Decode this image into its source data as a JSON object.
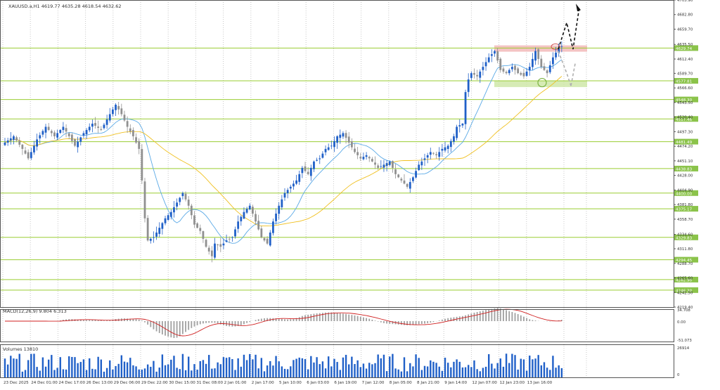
{
  "symbol_header": "XAUUSD.a,H1  4619.77 4635.28 4618.54 4632.62",
  "macd_label": "MACD(12,26,9) 9.804 6.313",
  "volume_label": "Volumes 13810",
  "colors": {
    "bull": "#2060c8",
    "bear": "#909090",
    "ma_fast": "#5aa9e6",
    "ma_slow": "#f0c020",
    "level_line": "#9acd32",
    "level_label_bg": "#8bc34a",
    "resistance_zone": "#f2b8b8",
    "support_zone": "#cfe8a8",
    "macd_signal": "#d02020",
    "arrow_up": "#111111",
    "arrow_down": "#b0b0b0"
  },
  "chart_data": [
    {
      "type": "candlestick",
      "symbol": "XAUUSD.a",
      "timeframe": "H1",
      "ylim": [
        4219.4,
        4705.9
      ],
      "y_ticks": [
        "4705.90",
        "4682.80",
        "4659.70",
        "4635.50",
        "4612.40",
        "4589.70",
        "4566.60",
        "4543.50",
        "4520.40",
        "4497.30",
        "4474.20",
        "4451.10",
        "4428.00",
        "4404.90",
        "4381.80",
        "4358.70",
        "4334.60",
        "4311.80",
        "4288.70",
        "4265.60",
        "4242.50",
        "4219.40"
      ],
      "x_labels": [
        "23 Dec 2025",
        "24 Dec 01:00",
        "24 Dec 17:00",
        "26 Dec 13:00",
        "29 Dec 06:00",
        "29 Dec 22:00",
        "30 Dec 15:00",
        "31 Dec 08:00",
        "2 Jan 01:00",
        "2 Jan 17:00",
        "5 Jan 10:00",
        "6 Jan 03:00",
        "6 Jan 19:00",
        "7 Jan 12:00",
        "8 Jan 05:00",
        "8 Jan 21:00",
        "9 Jan 14:00",
        "12 Jan 07:00",
        "12 Jan 23:00",
        "13 Jan 16:00"
      ],
      "levels": [
        {
          "label": "4629.74",
          "value": 4629.74
        },
        {
          "label": "4577.81",
          "value": 4577.81
        },
        {
          "label": "4548.30",
          "value": 4548.3
        },
        {
          "label": "4517.46",
          "value": 4517.46
        },
        {
          "label": "4481.49",
          "value": 4481.49
        },
        {
          "label": "4438.83",
          "value": 4438.83
        },
        {
          "label": "4400.00",
          "value": 4400.0
        },
        {
          "label": "4375.17",
          "value": 4375.17
        },
        {
          "label": "4329.83",
          "value": 4329.83
        },
        {
          "label": "4294.45",
          "value": 4294.45
        },
        {
          "label": "4262.90",
          "value": 4262.9
        },
        {
          "label": "4246.30",
          "value": 4246.3
        }
      ],
      "resistance_zone": [
        4624,
        4634
      ],
      "support_zone": [
        4568,
        4578
      ],
      "close_trend": [
        [
          0,
          4480
        ],
        [
          3,
          4490
        ],
        [
          6,
          4470
        ],
        [
          8,
          4455
        ],
        [
          11,
          4485
        ],
        [
          14,
          4505
        ],
        [
          17,
          4490
        ],
        [
          20,
          4505
        ],
        [
          24,
          4475
        ],
        [
          27,
          4495
        ],
        [
          30,
          4510
        ],
        [
          33,
          4500
        ],
        [
          36,
          4525
        ],
        [
          38,
          4540
        ],
        [
          40,
          4525
        ],
        [
          42,
          4505
        ],
        [
          44,
          4490
        ],
        [
          46,
          4470
        ],
        [
          47,
          4420
        ],
        [
          48,
          4360
        ],
        [
          49,
          4325
        ],
        [
          51,
          4330
        ],
        [
          53,
          4345
        ],
        [
          55,
          4360
        ],
        [
          57,
          4370
        ],
        [
          59,
          4385
        ],
        [
          61,
          4400
        ],
        [
          63,
          4380
        ],
        [
          65,
          4350
        ],
        [
          67,
          4340
        ],
        [
          69,
          4315
        ],
        [
          71,
          4300
        ],
        [
          72,
          4320
        ],
        [
          74,
          4315
        ],
        [
          76,
          4325
        ],
        [
          78,
          4330
        ],
        [
          80,
          4355
        ],
        [
          82,
          4370
        ],
        [
          84,
          4380
        ],
        [
          86,
          4355
        ],
        [
          88,
          4330
        ],
        [
          90,
          4320
        ],
        [
          92,
          4355
        ],
        [
          94,
          4380
        ],
        [
          96,
          4400
        ],
        [
          98,
          4410
        ],
        [
          100,
          4420
        ],
        [
          102,
          4440
        ],
        [
          104,
          4430
        ],
        [
          106,
          4450
        ],
        [
          108,
          4455
        ],
        [
          110,
          4470
        ],
        [
          112,
          4475
        ],
        [
          114,
          4490
        ],
        [
          116,
          4495
        ],
        [
          118,
          4480
        ],
        [
          120,
          4465
        ],
        [
          122,
          4455
        ],
        [
          124,
          4460
        ],
        [
          126,
          4450
        ],
        [
          128,
          4440
        ],
        [
          130,
          4445
        ],
        [
          132,
          4450
        ],
        [
          134,
          4430
        ],
        [
          136,
          4420
        ],
        [
          138,
          4410
        ],
        [
          140,
          4425
        ],
        [
          142,
          4445
        ],
        [
          144,
          4455
        ],
        [
          146,
          4465
        ],
        [
          148,
          4460
        ],
        [
          150,
          4470
        ],
        [
          152,
          4475
        ],
        [
          154,
          4490
        ],
        [
          155,
          4505
        ],
        [
          157,
          4510
        ],
        [
          158,
          4560
        ],
        [
          159,
          4580
        ],
        [
          160,
          4590
        ],
        [
          162,
          4585
        ],
        [
          164,
          4600
        ],
        [
          166,
          4615
        ],
        [
          168,
          4625
        ],
        [
          170,
          4595
        ],
        [
          172,
          4590
        ],
        [
          174,
          4600
        ],
        [
          176,
          4590
        ],
        [
          178,
          4585
        ],
        [
          180,
          4600
        ],
        [
          182,
          4625
        ],
        [
          184,
          4600
        ],
        [
          186,
          4590
        ],
        [
          188,
          4615
        ],
        [
          190,
          4630
        ],
        [
          191,
          4632.62
        ]
      ],
      "macd": {
        "label": "MACD(12,26,9) 9.804 6.313",
        "y_ticks": [
          "34.708",
          "0.00",
          "-51.073"
        ]
      },
      "volume": {
        "label": "Volumes 13810",
        "y_ticks": [
          "26914",
          "0"
        ]
      }
    }
  ]
}
